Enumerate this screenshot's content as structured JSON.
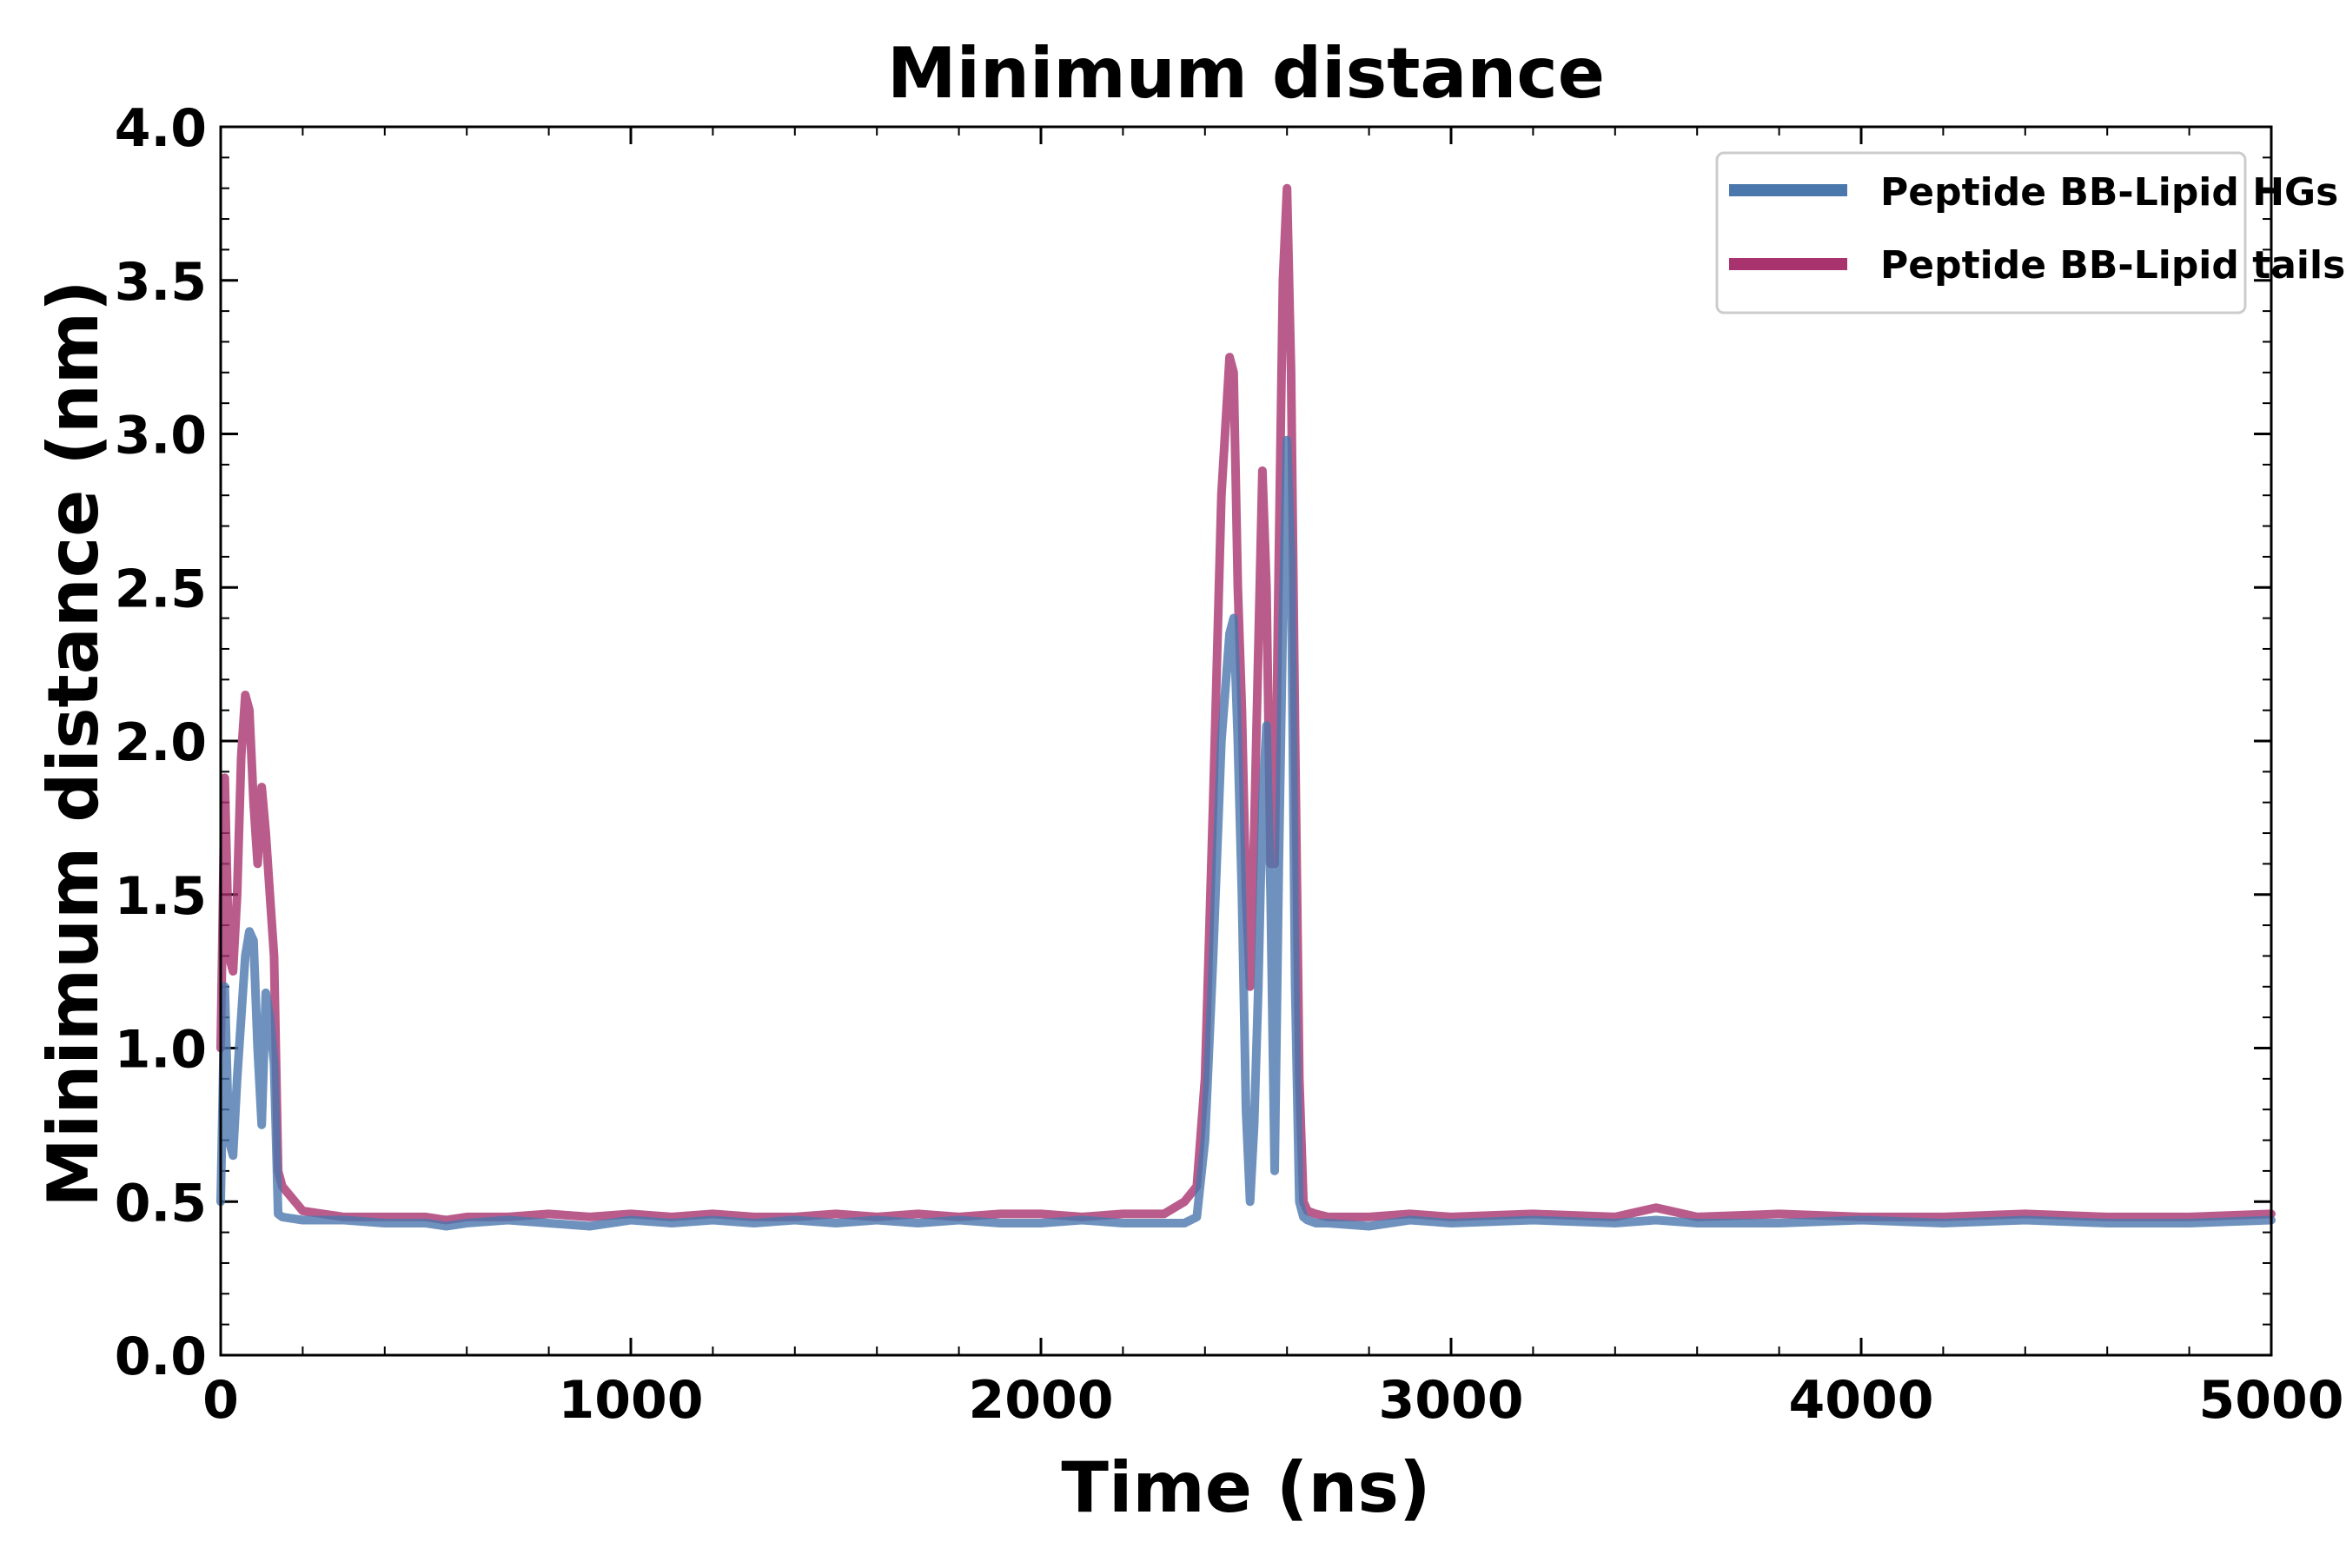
{
  "chart_data": {
    "type": "line",
    "title": "Minimum distance",
    "xlabel": "Time (ns)",
    "ylabel": "Minimum distance (nm)",
    "xlim": [
      0,
      5000
    ],
    "ylim": [
      0.0,
      4.0
    ],
    "xticks": [
      0,
      1000,
      2000,
      3000,
      4000,
      5000
    ],
    "xtick_labels": [
      "0",
      "1000",
      "2000",
      "3000",
      "4000",
      "5000"
    ],
    "yticks": [
      0.0,
      0.5,
      1.0,
      1.5,
      2.0,
      2.5,
      3.0,
      3.5,
      4.0
    ],
    "ytick_labels": [
      "0.0",
      "0.5",
      "1.0",
      "1.5",
      "2.0",
      "2.5",
      "3.0",
      "3.5",
      "4.0"
    ],
    "grid": false,
    "legend_position": "top-right",
    "series": [
      {
        "name": "Peptide BB-Lipid HGs",
        "color": "#4a77ac",
        "x": [
          0,
          10,
          20,
          30,
          40,
          50,
          60,
          70,
          80,
          90,
          100,
          110,
          120,
          130,
          140,
          150,
          200,
          300,
          400,
          500,
          550,
          600,
          700,
          800,
          900,
          1000,
          1100,
          1200,
          1300,
          1400,
          1500,
          1600,
          1700,
          1800,
          1900,
          2000,
          2100,
          2200,
          2300,
          2350,
          2380,
          2400,
          2420,
          2440,
          2460,
          2470,
          2480,
          2490,
          2500,
          2510,
          2520,
          2530,
          2540,
          2550,
          2560,
          2570,
          2580,
          2590,
          2600,
          2610,
          2620,
          2630,
          2640,
          2650,
          2670,
          2700,
          2800,
          2900,
          3000,
          3200,
          3400,
          3500,
          3600,
          3800,
          4000,
          4200,
          4400,
          4600,
          4800,
          5000
        ],
        "values": [
          0.5,
          1.2,
          0.7,
          0.65,
          0.9,
          1.1,
          1.3,
          1.38,
          1.35,
          1.0,
          0.75,
          1.18,
          1.1,
          0.95,
          0.46,
          0.45,
          0.44,
          0.44,
          0.43,
          0.43,
          0.42,
          0.43,
          0.44,
          0.43,
          0.42,
          0.44,
          0.43,
          0.44,
          0.43,
          0.44,
          0.43,
          0.44,
          0.43,
          0.44,
          0.43,
          0.43,
          0.44,
          0.43,
          0.43,
          0.43,
          0.45,
          0.7,
          1.3,
          2.0,
          2.35,
          2.4,
          2.0,
          1.5,
          0.8,
          0.5,
          0.75,
          1.2,
          1.8,
          2.05,
          1.5,
          0.6,
          1.6,
          2.4,
          2.98,
          2.6,
          1.2,
          0.5,
          0.45,
          0.44,
          0.43,
          0.43,
          0.42,
          0.44,
          0.43,
          0.44,
          0.43,
          0.44,
          0.43,
          0.43,
          0.44,
          0.43,
          0.44,
          0.43,
          0.43,
          0.44
        ]
      },
      {
        "name": "Peptide BB-Lipid tails",
        "color": "#a8336e",
        "x": [
          0,
          10,
          20,
          30,
          40,
          50,
          60,
          70,
          80,
          90,
          100,
          110,
          120,
          130,
          140,
          150,
          200,
          300,
          400,
          500,
          550,
          600,
          700,
          800,
          900,
          1000,
          1100,
          1200,
          1300,
          1400,
          1500,
          1600,
          1700,
          1800,
          1900,
          2000,
          2100,
          2200,
          2300,
          2350,
          2380,
          2400,
          2420,
          2440,
          2460,
          2470,
          2480,
          2490,
          2500,
          2510,
          2520,
          2530,
          2540,
          2550,
          2560,
          2570,
          2580,
          2590,
          2600,
          2610,
          2620,
          2630,
          2640,
          2650,
          2670,
          2700,
          2800,
          2900,
          3000,
          3200,
          3400,
          3500,
          3600,
          3800,
          4000,
          4200,
          4400,
          4600,
          4800,
          5000
        ],
        "values": [
          1.0,
          1.88,
          1.3,
          1.25,
          1.5,
          1.95,
          2.15,
          2.1,
          1.8,
          1.6,
          1.85,
          1.7,
          1.5,
          1.3,
          0.6,
          0.55,
          0.47,
          0.45,
          0.45,
          0.45,
          0.44,
          0.45,
          0.45,
          0.46,
          0.45,
          0.46,
          0.45,
          0.46,
          0.45,
          0.45,
          0.46,
          0.45,
          0.46,
          0.45,
          0.46,
          0.46,
          0.45,
          0.46,
          0.46,
          0.5,
          0.55,
          0.9,
          1.8,
          2.8,
          3.25,
          3.2,
          2.5,
          2.1,
          1.5,
          1.2,
          1.7,
          2.3,
          2.88,
          2.5,
          1.6,
          1.6,
          2.6,
          3.5,
          3.8,
          3.2,
          2.0,
          0.9,
          0.5,
          0.47,
          0.46,
          0.45,
          0.45,
          0.46,
          0.45,
          0.46,
          0.45,
          0.48,
          0.45,
          0.46,
          0.45,
          0.45,
          0.46,
          0.45,
          0.45,
          0.46
        ]
      }
    ]
  }
}
